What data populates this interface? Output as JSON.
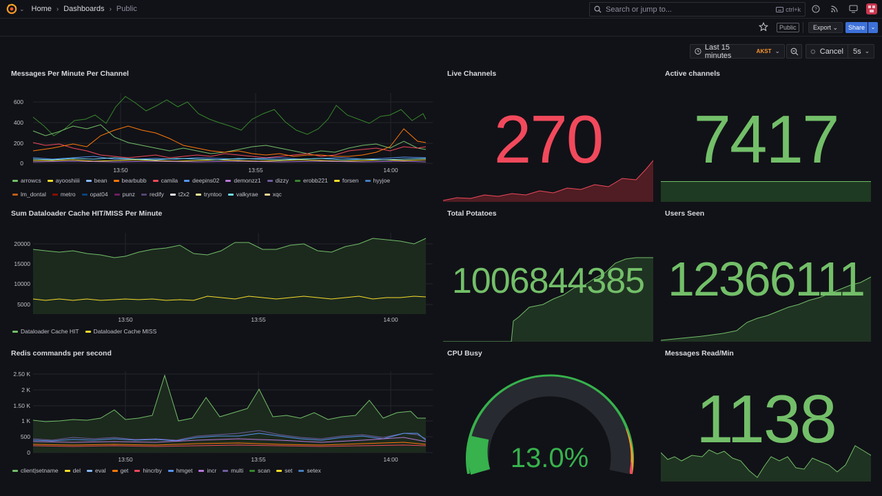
{
  "topbar": {
    "breadcrumb": [
      "Home",
      "Dashboards",
      "Public"
    ],
    "search_placeholder": "Search or jump to...",
    "search_shortcut": "ctrl+k"
  },
  "subbar": {
    "public_badge": "Public",
    "export_label": "Export",
    "share_label": "Share"
  },
  "controls": {
    "time_range": "Last 15 minutes",
    "timezone": "AKST",
    "cancel_label": "Cancel",
    "refresh_interval": "5s"
  },
  "colors": {
    "green": "#73bf69",
    "red": "#f2495c",
    "orange": "#ff9830",
    "yellow": "#fade2a",
    "blue": "#5794f2"
  },
  "panels": {
    "messages_per_minute": {
      "title": "Messages Per Minute Per Channel",
      "y_ticks": [
        "600",
        "400",
        "200",
        "0"
      ],
      "x_ticks": [
        "13:50",
        "13:55",
        "14:00"
      ],
      "legend": [
        {
          "name": "arrowcs",
          "color": "#73bf69"
        },
        {
          "name": "ayooshiiii",
          "color": "#fade2a"
        },
        {
          "name": "bean",
          "color": "#8ab8ff"
        },
        {
          "name": "bearbubb",
          "color": "#ff780a"
        },
        {
          "name": "camila",
          "color": "#f2495c"
        },
        {
          "name": "deepins02",
          "color": "#5794f2"
        },
        {
          "name": "demonzz1",
          "color": "#b877d9"
        },
        {
          "name": "dizzy",
          "color": "#705da0"
        },
        {
          "name": "erobb221",
          "color": "#37872d"
        },
        {
          "name": "forsen",
          "color": "#fade2a"
        },
        {
          "name": "hyyjoe",
          "color": "#447ebc"
        },
        {
          "name": "lm_dontal",
          "color": "#c15c17"
        },
        {
          "name": "metro",
          "color": "#890f02"
        },
        {
          "name": "opat04",
          "color": "#0a437c"
        },
        {
          "name": "punz",
          "color": "#6d1f62"
        },
        {
          "name": "redify",
          "color": "#584477"
        },
        {
          "name": "t2x2",
          "color": "#f2f2f2"
        },
        {
          "name": "tryntoo",
          "color": "#fff899"
        },
        {
          "name": "valkyrae",
          "color": "#70dbed"
        },
        {
          "name": "xqc",
          "color": "#f4d598"
        }
      ]
    },
    "live_channels": {
      "title": "Live Channels",
      "value": "270"
    },
    "active_channels": {
      "title": "Active channels",
      "value": "7417"
    },
    "dataloader": {
      "title": "Sum Dataloader Cache HIT/MISS Per Minute",
      "y_ticks": [
        "20000",
        "15000",
        "10000",
        "5000"
      ],
      "x_ticks": [
        "13:50",
        "13:55",
        "14:00"
      ],
      "legend": [
        {
          "name": "Dataloader Cache HIT",
          "color": "#73bf69"
        },
        {
          "name": "Dataloader Cache MISS",
          "color": "#fade2a"
        }
      ]
    },
    "total_potatoes": {
      "title": "Total Potatoes",
      "value": "1006844385"
    },
    "users_seen": {
      "title": "Users Seen",
      "value": "12366111"
    },
    "redis": {
      "title": "Redis commands per second",
      "y_ticks": [
        "2.50 K",
        "2 K",
        "1.50 K",
        "1 K",
        "500",
        "0"
      ],
      "x_ticks": [
        "13:50",
        "13:55",
        "14:00"
      ],
      "legend": [
        {
          "name": "client|setname",
          "color": "#73bf69"
        },
        {
          "name": "del",
          "color": "#fade2a"
        },
        {
          "name": "eval",
          "color": "#8ab8ff"
        },
        {
          "name": "get",
          "color": "#ff780a"
        },
        {
          "name": "hincrby",
          "color": "#f2495c"
        },
        {
          "name": "hmget",
          "color": "#5794f2"
        },
        {
          "name": "incr",
          "color": "#b877d9"
        },
        {
          "name": "multi",
          "color": "#705da0"
        },
        {
          "name": "scan",
          "color": "#37872d"
        },
        {
          "name": "set",
          "color": "#fade2a"
        },
        {
          "name": "setex",
          "color": "#447ebc"
        }
      ]
    },
    "cpu_busy": {
      "title": "CPU Busy",
      "value": "13.0%",
      "percent": 13
    },
    "messages_read": {
      "title": "Messages Read/Min",
      "value": "1138"
    }
  }
}
